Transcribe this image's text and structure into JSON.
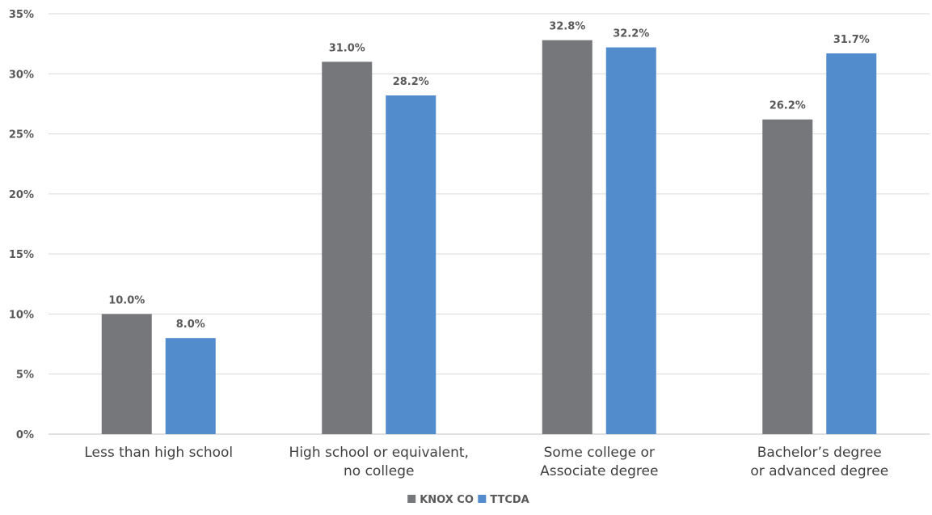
{
  "chart_data": {
    "type": "bar",
    "categories": [
      [
        "Less than high school"
      ],
      [
        "High school or equivalent,",
        "no college"
      ],
      [
        "Some college or",
        "Associate degree"
      ],
      [
        "Bachelor’s degree",
        "or advanced degree"
      ]
    ],
    "series": [
      {
        "name": "KNOX CO",
        "color": "#76777b",
        "values": [
          10.0,
          31.0,
          32.8,
          26.2
        ],
        "labels": [
          "10.0%",
          "31.0%",
          "32.8%",
          "26.2%"
        ]
      },
      {
        "name": "TTCDA",
        "color": "#538ccc",
        "values": [
          8.0,
          28.2,
          32.2,
          31.7
        ],
        "labels": [
          "8.0%",
          "28.2%",
          "32.2%",
          "31.7%"
        ]
      }
    ],
    "ylim": [
      0,
      35
    ],
    "yticks": [
      "0%",
      "5%",
      "10%",
      "15%",
      "20%",
      "25%",
      "30%",
      "35%"
    ],
    "grid": true,
    "gridColor": "#d9d9d9",
    "legend_position": "bottom"
  }
}
